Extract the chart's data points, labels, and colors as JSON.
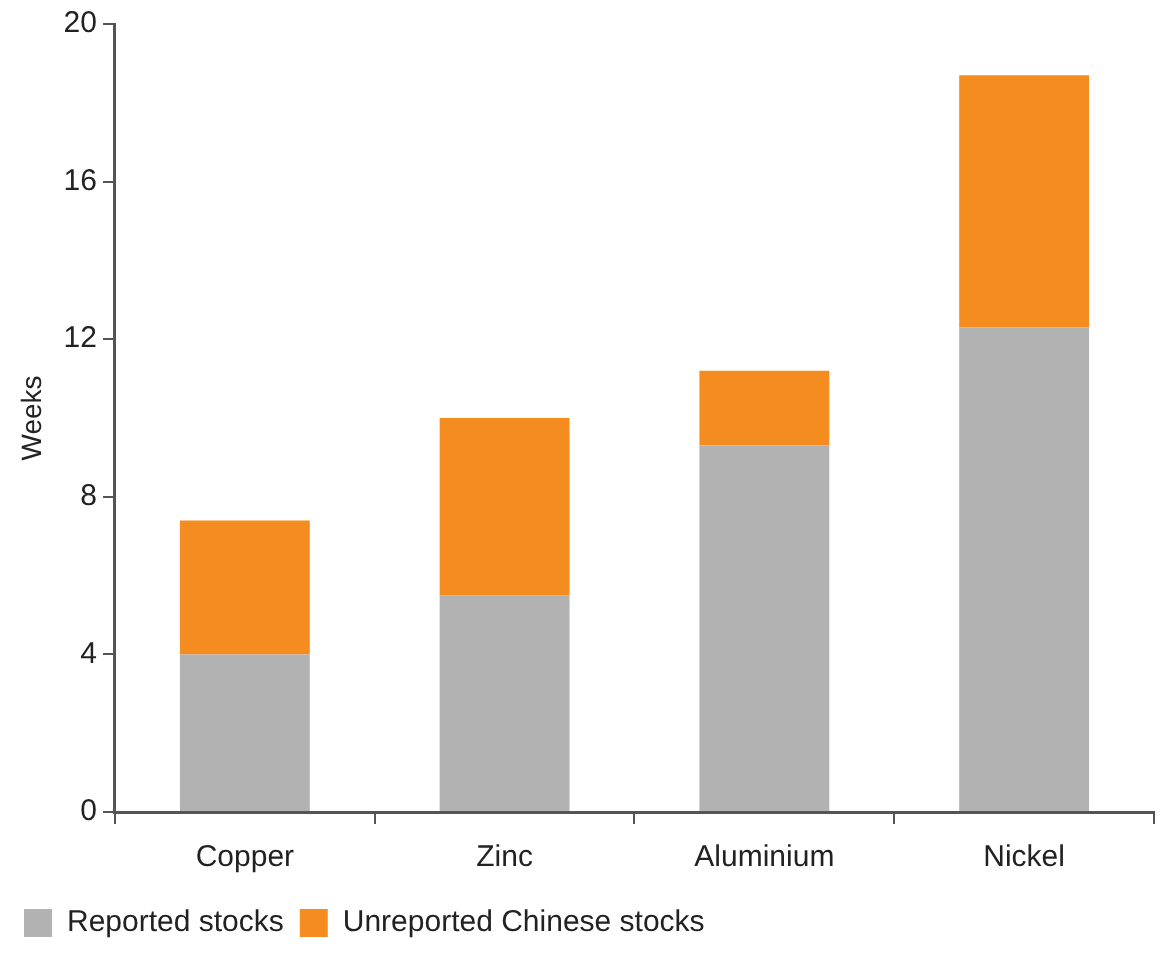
{
  "chart_data": {
    "type": "bar",
    "stacked": true,
    "ylabel": "Weeks",
    "categories": [
      "Copper",
      "Zinc",
      "Aluminium",
      "Nickel"
    ],
    "series": [
      {
        "name": "Reported stocks",
        "color": "#b2b2b2",
        "values": [
          4.0,
          5.5,
          9.3,
          12.3
        ]
      },
      {
        "name": "Unreported Chinese stocks",
        "color": "#f58c1f",
        "values": [
          3.4,
          4.5,
          1.9,
          6.4
        ]
      }
    ],
    "ylim": [
      0,
      20
    ],
    "yticks": [
      0,
      4,
      8,
      12,
      16,
      20
    ],
    "grid": false,
    "legend": "bottom left"
  }
}
